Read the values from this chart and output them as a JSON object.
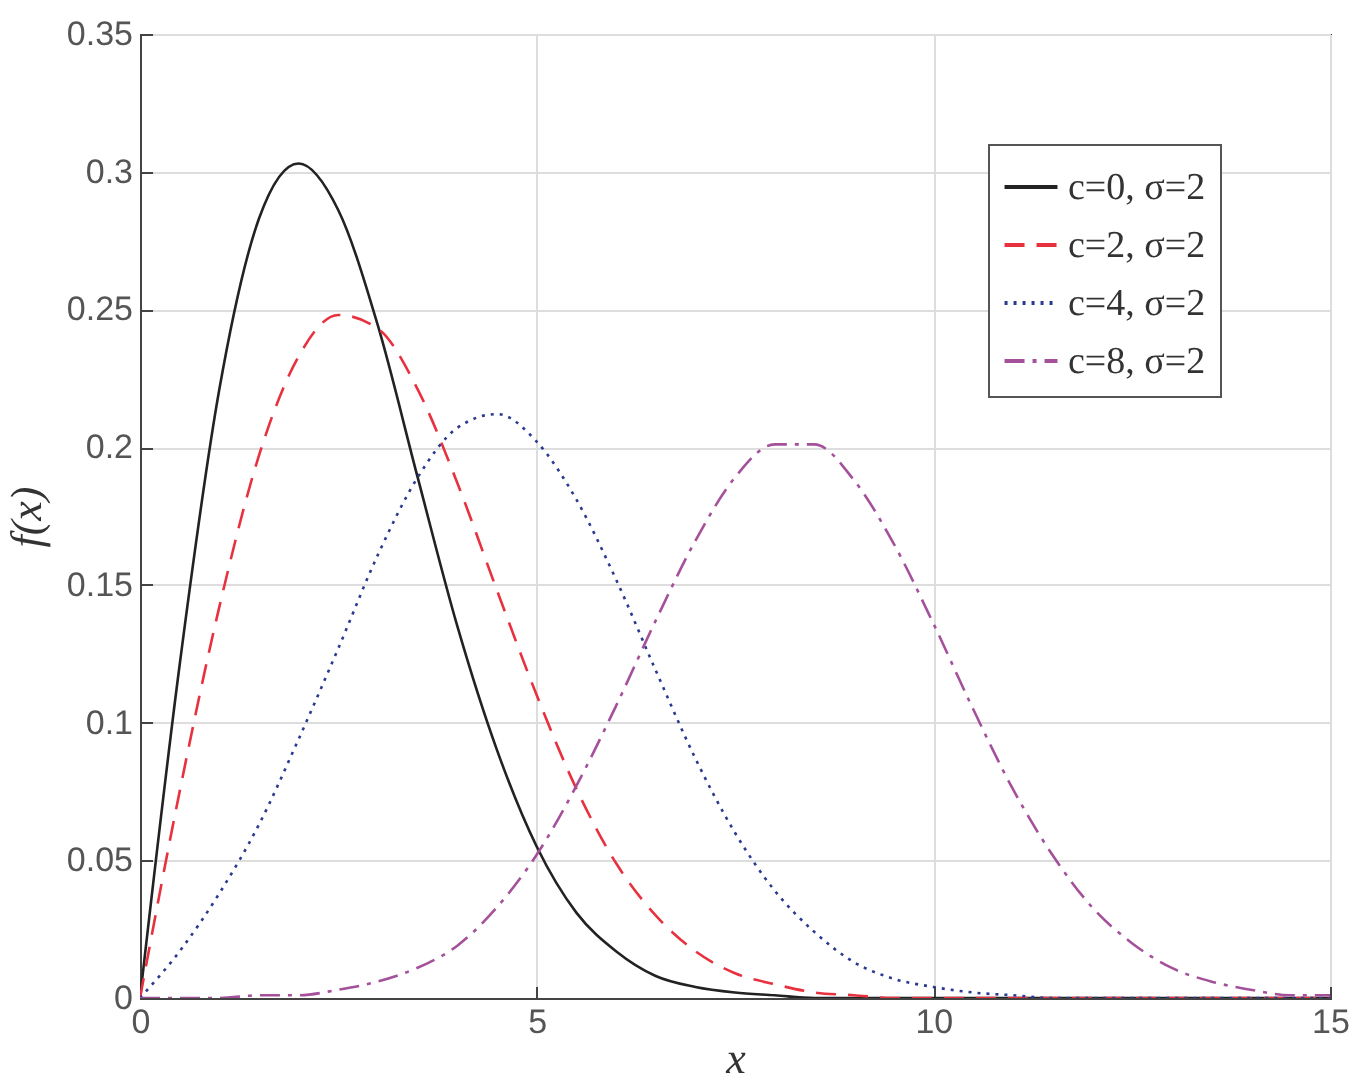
{
  "chart_data": {
    "type": "line",
    "xlabel": "x",
    "ylabel": "f(x)",
    "x": [
      0,
      0.5,
      1,
      1.5,
      2,
      2.5,
      3,
      3.5,
      4,
      4.5,
      5,
      5.5,
      6,
      6.5,
      7,
      7.5,
      8,
      8.5,
      9,
      9.5,
      10,
      10.5,
      11,
      11.5,
      12,
      12.5,
      13,
      13.5,
      14,
      14.5,
      15
    ],
    "series": [
      {
        "name": "c=0, σ=2",
        "color": "#222222",
        "line_style": "solid",
        "values": [
          0,
          0.121,
          0.221,
          0.283,
          0.303,
          0.286,
          0.244,
          0.189,
          0.135,
          0.09,
          0.055,
          0.031,
          0.017,
          0.008,
          0.004,
          0.002,
          0.001,
          0,
          0,
          0,
          0,
          0,
          0,
          0,
          0,
          0,
          0,
          0,
          0,
          0,
          0
        ]
      },
      {
        "name": "c=2, σ=2",
        "color": "#e8313f",
        "line_style": "dashed",
        "values": [
          0,
          0.075,
          0.142,
          0.197,
          0.233,
          0.248,
          0.243,
          0.221,
          0.187,
          0.148,
          0.11,
          0.076,
          0.049,
          0.03,
          0.017,
          0.009,
          0.005,
          0.002,
          0.001,
          0,
          0,
          0,
          0,
          0,
          0,
          0,
          0,
          0,
          0,
          0,
          0
        ]
      },
      {
        "name": "c=4, σ=2",
        "color": "#2b3990",
        "line_style": "dotted",
        "values": [
          0,
          0.017,
          0.038,
          0.063,
          0.094,
          0.127,
          0.161,
          0.189,
          0.207,
          0.212,
          0.202,
          0.181,
          0.152,
          0.119,
          0.087,
          0.06,
          0.039,
          0.024,
          0.013,
          0.007,
          0.004,
          0.002,
          0.001,
          0,
          0,
          0,
          0,
          0,
          0,
          0,
          0
        ]
      },
      {
        "name": "c=8, σ=2",
        "color": "#a4509a",
        "line_style": "dashdot",
        "values": [
          0,
          0,
          0,
          0.001,
          0.001,
          0.003,
          0.006,
          0.011,
          0.019,
          0.033,
          0.052,
          0.077,
          0.106,
          0.137,
          0.166,
          0.189,
          0.201,
          0.201,
          0.188,
          0.165,
          0.136,
          0.105,
          0.076,
          0.052,
          0.033,
          0.02,
          0.011,
          0.006,
          0.003,
          0.001,
          0.001
        ]
      }
    ],
    "xlim": [
      0,
      15
    ],
    "xticks": [
      0,
      5,
      10,
      15
    ],
    "ylim": [
      0,
      0.35
    ],
    "yticks": [
      0,
      0.05,
      0.1,
      0.15,
      0.2,
      0.25,
      0.3,
      0.35
    ],
    "grid": true,
    "legend": "top right"
  }
}
